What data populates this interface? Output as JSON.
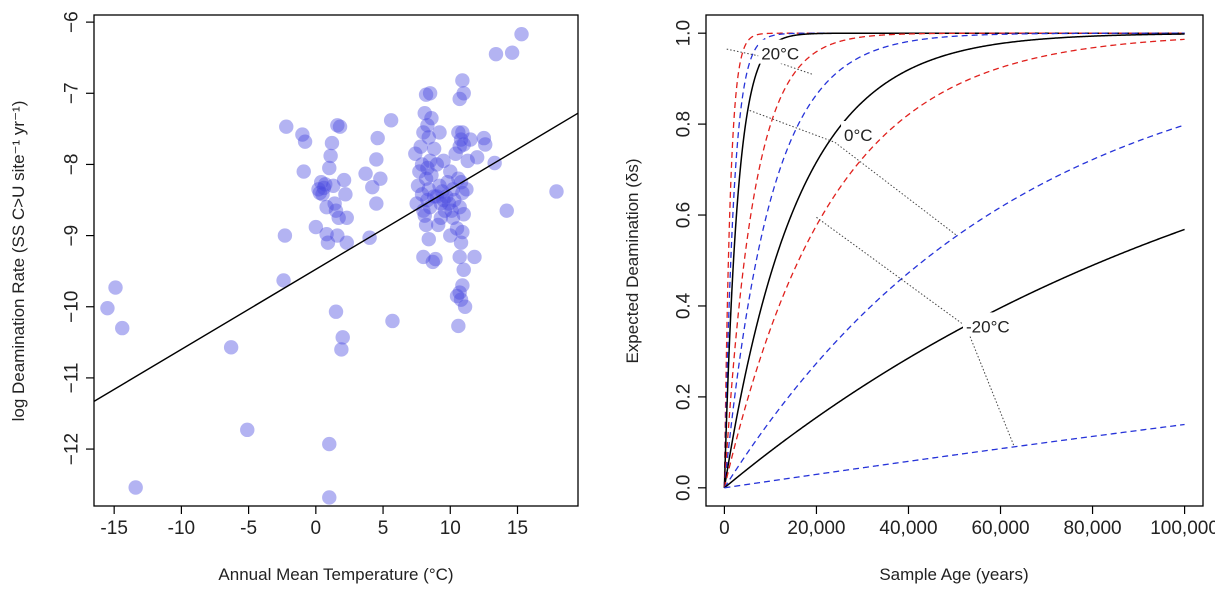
{
  "chart_data": [
    {
      "type": "scatter",
      "title": "",
      "xlabel": "Annual Mean Temperature (°C)",
      "ylabel": "log Deamination Rate (SS C>U site⁻¹ yr⁻¹)",
      "xlim": [
        -16.5,
        19.5
      ],
      "ylim": [
        -12.8,
        -5.9
      ],
      "xticks": [
        -15,
        -10,
        -5,
        0,
        5,
        10,
        15
      ],
      "xtick_labels": [
        "-15",
        "-10",
        "-5",
        "0",
        "5",
        "10",
        "15"
      ],
      "yticks": [
        -12,
        -11,
        -10,
        -9,
        -8,
        -7,
        -6
      ],
      "ytick_labels": [
        "−12",
        "−11",
        "−10",
        "−9",
        "−8",
        "−7",
        "−6"
      ],
      "grid": false,
      "point_color": "#4a4ae0",
      "fit_color": "#000000",
      "regression_line": {
        "x": [
          -16.5,
          19.5
        ],
        "y": [
          -11.33,
          -7.28
        ]
      },
      "points": [
        [
          -15.5,
          -10.02
        ],
        [
          -14.9,
          -9.73
        ],
        [
          -14.4,
          -10.3
        ],
        [
          -13.4,
          -12.54
        ],
        [
          -6.3,
          -10.57
        ],
        [
          -5.1,
          -11.73
        ],
        [
          -2.4,
          -9.63
        ],
        [
          -2.3,
          -9.0
        ],
        [
          -2.2,
          -7.47
        ],
        [
          -1.0,
          -7.58
        ],
        [
          -0.8,
          -7.68
        ],
        [
          -0.9,
          -8.1
        ],
        [
          0.0,
          -8.88
        ],
        [
          0.2,
          -8.35
        ],
        [
          0.3,
          -8.4
        ],
        [
          0.4,
          -8.25
        ],
        [
          0.5,
          -8.42
        ],
        [
          0.6,
          -8.33
        ],
        [
          0.7,
          -8.28
        ],
        [
          0.8,
          -8.6
        ],
        [
          0.8,
          -8.98
        ],
        [
          0.9,
          -9.1
        ],
        [
          1.0,
          -8.05
        ],
        [
          1.0,
          -11.93
        ],
        [
          1.0,
          -12.68
        ],
        [
          1.1,
          -7.88
        ],
        [
          1.2,
          -7.7
        ],
        [
          1.3,
          -8.3
        ],
        [
          1.4,
          -8.55
        ],
        [
          1.5,
          -8.65
        ],
        [
          1.5,
          -10.07
        ],
        [
          1.6,
          -7.45
        ],
        [
          1.6,
          -9.0
        ],
        [
          1.7,
          -8.75
        ],
        [
          1.8,
          -7.47
        ],
        [
          1.9,
          -10.6
        ],
        [
          2.0,
          -10.43
        ],
        [
          2.1,
          -8.22
        ],
        [
          2.2,
          -8.42
        ],
        [
          2.3,
          -8.75
        ],
        [
          2.3,
          -9.1
        ],
        [
          3.7,
          -8.13
        ],
        [
          4.0,
          -9.03
        ],
        [
          4.2,
          -8.32
        ],
        [
          4.5,
          -8.55
        ],
        [
          4.5,
          -7.93
        ],
        [
          4.6,
          -7.63
        ],
        [
          4.8,
          -8.2
        ],
        [
          5.6,
          -7.38
        ],
        [
          5.7,
          -10.2
        ],
        [
          7.4,
          -7.85
        ],
        [
          7.5,
          -8.55
        ],
        [
          7.6,
          -8.3
        ],
        [
          7.7,
          -8.1
        ],
        [
          7.8,
          -7.75
        ],
        [
          7.9,
          -8.0
        ],
        [
          7.9,
          -8.42
        ],
        [
          8.0,
          -7.55
        ],
        [
          8.0,
          -8.65
        ],
        [
          8.0,
          -9.3
        ],
        [
          8.1,
          -7.28
        ],
        [
          8.1,
          -8.72
        ],
        [
          8.2,
          -7.02
        ],
        [
          8.2,
          -8.2
        ],
        [
          8.2,
          -8.85
        ],
        [
          8.3,
          -7.45
        ],
        [
          8.3,
          -8.05
        ],
        [
          8.3,
          -8.5
        ],
        [
          8.4,
          -7.62
        ],
        [
          8.4,
          -8.35
        ],
        [
          8.4,
          -9.05
        ],
        [
          8.5,
          -7.0
        ],
        [
          8.5,
          -7.95
        ],
        [
          8.5,
          -8.6
        ],
        [
          8.6,
          -7.35
        ],
        [
          8.6,
          -8.15
        ],
        [
          8.7,
          -9.37
        ],
        [
          8.8,
          -7.78
        ],
        [
          8.8,
          -8.45
        ],
        [
          8.9,
          -9.33
        ],
        [
          9.0,
          -8.0
        ],
        [
          9.0,
          -8.45
        ],
        [
          9.1,
          -8.85
        ],
        [
          9.2,
          -7.55
        ],
        [
          9.2,
          -8.3
        ],
        [
          9.3,
          -8.55
        ],
        [
          9.3,
          -8.75
        ],
        [
          9.4,
          -8.38
        ],
        [
          9.5,
          -7.95
        ],
        [
          9.5,
          -8.5
        ],
        [
          9.6,
          -8.65
        ],
        [
          9.7,
          -8.45
        ],
        [
          9.8,
          -8.25
        ],
        [
          9.9,
          -8.55
        ],
        [
          10.0,
          -8.1
        ],
        [
          10.0,
          -9.0
        ],
        [
          10.1,
          -8.65
        ],
        [
          10.2,
          -8.35
        ],
        [
          10.2,
          -8.75
        ],
        [
          10.3,
          -8.5
        ],
        [
          10.4,
          -7.85
        ],
        [
          10.5,
          -8.9
        ],
        [
          10.5,
          -9.85
        ],
        [
          10.6,
          -7.55
        ],
        [
          10.6,
          -8.2
        ],
        [
          10.6,
          -10.27
        ],
        [
          10.7,
          -7.08
        ],
        [
          10.7,
          -7.75
        ],
        [
          10.7,
          -8.6
        ],
        [
          10.7,
          -9.3
        ],
        [
          10.7,
          -9.8
        ],
        [
          10.8,
          -7.65
        ],
        [
          10.8,
          -8.25
        ],
        [
          10.8,
          -9.1
        ],
        [
          10.8,
          -9.9
        ],
        [
          10.9,
          -6.82
        ],
        [
          10.9,
          -7.55
        ],
        [
          10.9,
          -8.4
        ],
        [
          10.9,
          -8.95
        ],
        [
          10.9,
          -9.7
        ],
        [
          11.0,
          -7.0
        ],
        [
          11.0,
          -7.72
        ],
        [
          11.0,
          -8.7
        ],
        [
          11.0,
          -9.48
        ],
        [
          11.1,
          -10.0
        ],
        [
          11.2,
          -8.35
        ],
        [
          11.3,
          -7.95
        ],
        [
          11.5,
          -7.65
        ],
        [
          11.8,
          -9.3
        ],
        [
          12.0,
          -7.9
        ],
        [
          12.5,
          -7.63
        ],
        [
          12.6,
          -7.72
        ],
        [
          13.3,
          -7.98
        ],
        [
          13.4,
          -6.45
        ],
        [
          14.2,
          -8.65
        ],
        [
          14.6,
          -6.43
        ],
        [
          15.3,
          -6.17
        ],
        [
          17.9,
          -8.38
        ]
      ]
    },
    {
      "type": "line",
      "title": "",
      "xlabel": "Sample Age (years)",
      "ylabel": "Expected Deamination (δs)",
      "xlim": [
        -4000,
        104000
      ],
      "ylim": [
        -0.04,
        1.04
      ],
      "xticks": [
        0,
        20000,
        40000,
        60000,
        80000,
        100000
      ],
      "xtick_labels": [
        "0",
        "20,000",
        "40,000",
        "60,000",
        "80,000",
        "100,000"
      ],
      "yticks": [
        0,
        0.2,
        0.4,
        0.6,
        0.8,
        1.0
      ],
      "ytick_labels": [
        "0.0",
        "0.2",
        "0.4",
        "0.6",
        "0.8",
        "1.0"
      ],
      "grid": false,
      "colors": {
        "solid": "#000000",
        "red": "#e0201c",
        "blue": "#2633d9",
        "guide": "#444444"
      },
      "curve_function": "1 - exp(-k * age)",
      "series": [
        {
          "k": 0.0008,
          "style": "dashed",
          "color": "red"
        },
        {
          "k": 0.0005,
          "style": "dashed",
          "color": "blue"
        },
        {
          "k": 0.00035,
          "style": "solid",
          "color": "black",
          "label": "20°C"
        },
        {
          "k": 0.00016,
          "style": "dashed",
          "color": "red"
        },
        {
          "k": 0.0001,
          "style": "dashed",
          "color": "blue"
        },
        {
          "k": 6.3e-05,
          "style": "solid",
          "color": "black",
          "label": "0°C"
        },
        {
          "k": 4.3e-05,
          "style": "dashed",
          "color": "red"
        },
        {
          "k": 1.6e-05,
          "style": "dashed",
          "color": "blue"
        },
        {
          "k": 8.4e-06,
          "style": "solid",
          "color": "black",
          "label": "-20°C"
        },
        {
          "k": 1.5e-06,
          "style": "dashed",
          "color": "blue"
        }
      ],
      "annotations": [
        {
          "text": "20°C",
          "x": 8000,
          "y": 0.955
        },
        {
          "text": "0°C",
          "x": 26000,
          "y": 0.776
        },
        {
          "text": "-20°C",
          "x": 52500,
          "y": 0.355
        }
      ],
      "guide_lines": [
        [
          [
            500,
            0.965
          ],
          [
            7500,
            0.95
          ],
          [
            19000,
            0.91
          ]
        ],
        [
          [
            5500,
            0.83
          ],
          [
            24000,
            0.76
          ],
          [
            50500,
            0.555
          ]
        ],
        [
          [
            20000,
            0.595
          ],
          [
            52500,
            0.355
          ],
          [
            63000,
            0.09
          ]
        ]
      ]
    }
  ]
}
